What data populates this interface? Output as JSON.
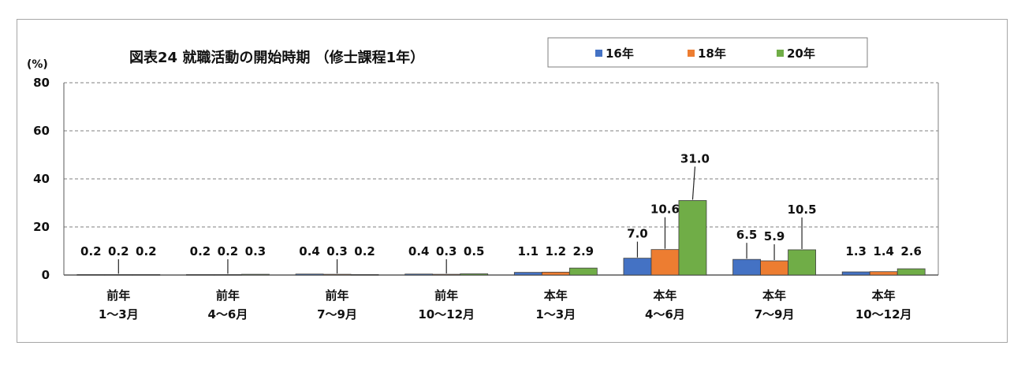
{
  "chart_data": {
    "type": "bar",
    "title": "図表24 就職活動の開始時期 （修士課程1年）",
    "ylabel": "(%)",
    "ylim": [
      0,
      80
    ],
    "yticks": [
      0,
      20,
      40,
      60,
      80
    ],
    "grid": true,
    "legend_position": "top-right",
    "categories": [
      [
        "前年",
        "1～3月"
      ],
      [
        "前年",
        "4～6月"
      ],
      [
        "前年",
        "7～9月"
      ],
      [
        "前年",
        "10～12月"
      ],
      [
        "本年",
        "1～3月"
      ],
      [
        "本年",
        "4～6月"
      ],
      [
        "本年",
        "7～9月"
      ],
      [
        "本年",
        "10～12月"
      ]
    ],
    "series": [
      {
        "name": "16年",
        "color": "#4472c4",
        "values": [
          0.2,
          0.2,
          0.4,
          0.4,
          1.1,
          7.0,
          6.5,
          1.3
        ]
      },
      {
        "name": "18年",
        "color": "#ed7d31",
        "values": [
          0.2,
          0.2,
          0.3,
          0.3,
          1.2,
          10.6,
          5.9,
          1.4
        ]
      },
      {
        "name": "20年",
        "color": "#70ad47",
        "values": [
          0.2,
          0.3,
          0.2,
          0.5,
          2.9,
          31.0,
          10.5,
          2.6
        ]
      }
    ],
    "data_labels": [
      [
        "0.2",
        "0.2",
        "0.2"
      ],
      [
        "0.2",
        "0.2",
        "0.3"
      ],
      [
        "0.4",
        "0.3",
        "0.2"
      ],
      [
        "0.4",
        "0.3",
        "0.5"
      ],
      [
        "1.1",
        "1.2",
        "2.9"
      ],
      [
        "7.0",
        "10.6",
        "31.0"
      ],
      [
        "6.5",
        "5.9",
        "10.5"
      ],
      [
        "1.3",
        "1.4",
        "2.6"
      ]
    ]
  }
}
